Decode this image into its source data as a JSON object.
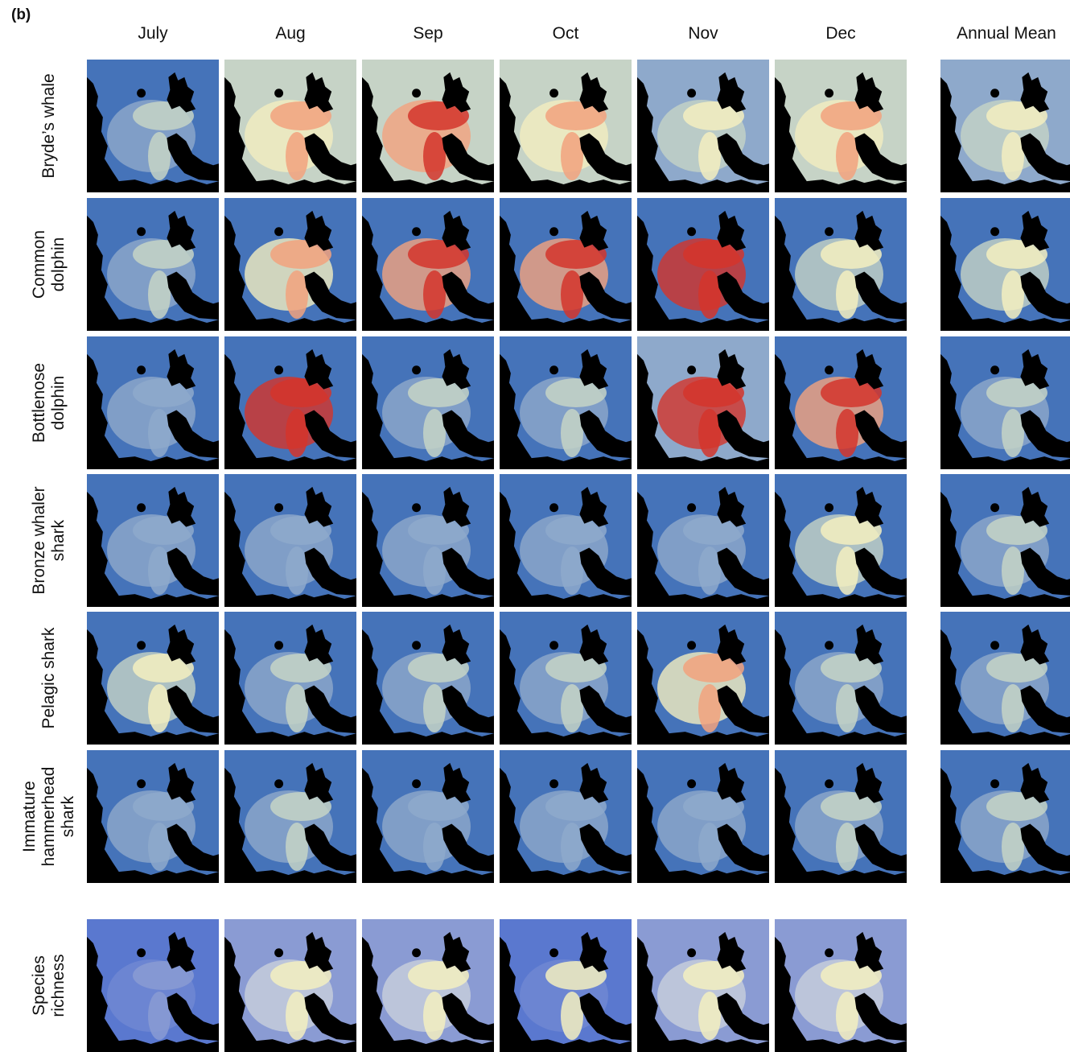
{
  "panel_label": "(b)",
  "columns": [
    "July",
    "Aug",
    "Sep",
    "Oct",
    "Nov",
    "Dec",
    "Annual Mean"
  ],
  "rows": [
    {
      "label": [
        "Bryde’s whale"
      ]
    },
    {
      "label": [
        "Common",
        "dolphin"
      ]
    },
    {
      "label": [
        "Bottlenose",
        "dolphin"
      ]
    },
    {
      "label": [
        "Bronze whaler",
        "shark"
      ]
    },
    {
      "label": [
        "Pelagic shark"
      ]
    },
    {
      "label": [
        "Immature",
        "hammerhead",
        "shark"
      ]
    }
  ],
  "summary_row": {
    "label": [
      "Species",
      "richness"
    ]
  }
}
